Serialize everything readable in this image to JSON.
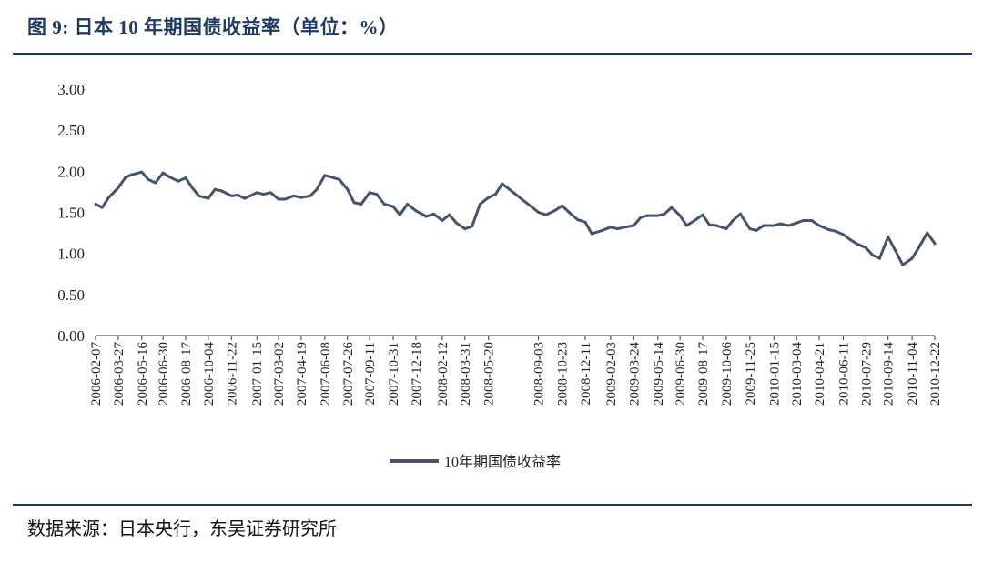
{
  "figure": {
    "title": "图 9:  日本 10 年期国债收益率（单位：%）",
    "source": "数据来源：日本央行，东吴证券研究所"
  },
  "chart_data": {
    "type": "line",
    "title": "图 9:  日本 10 年期国债收益率（单位：%）",
    "xlabel": "",
    "ylabel": "",
    "ylim": [
      0,
      3
    ],
    "y_ticks": [
      "0.00",
      "0.50",
      "1.00",
      "1.50",
      "2.00",
      "2.50",
      "3.00"
    ],
    "x_ticks": [
      "2006-02-07",
      "2006-03-27",
      "2006-05-16",
      "2006-06-30",
      "2006-08-17",
      "2006-10-04",
      "2006-11-22",
      "2007-01-15",
      "2007-03-02",
      "2007-04-19",
      "2007-06-08",
      "2007-07-26",
      "2007-09-11",
      "2007-10-31",
      "2007-12-18",
      "2008-02-12",
      "2008-03-31",
      "2008-05-20",
      "2008-09-03",
      "2008-10-23",
      "2008-12-11",
      "2009-02-03",
      "2009-03-24",
      "2009-05-14",
      "2009-06-30",
      "2009-08-17",
      "2009-10-06",
      "2009-11-25",
      "2010-01-15",
      "2010-03-04",
      "2010-04-21",
      "2010-06-11",
      "2010-07-29",
      "2010-09-14",
      "2010-11-04",
      "2010-12-22"
    ],
    "legend": {
      "position": "bottom"
    },
    "grid": false,
    "color": "#44546a",
    "series": [
      {
        "name": "10年期国债收益率",
        "x": [
          "2006-02-07",
          "2006-02-21",
          "2006-03-07",
          "2006-03-27",
          "2006-04-12",
          "2006-04-26",
          "2006-05-16",
          "2006-05-30",
          "2006-06-14",
          "2006-06-30",
          "2006-07-14",
          "2006-08-01",
          "2006-08-17",
          "2006-08-31",
          "2006-09-14",
          "2006-10-04",
          "2006-10-18",
          "2006-11-02",
          "2006-11-22",
          "2006-12-06",
          "2006-12-20",
          "2007-01-15",
          "2007-01-29",
          "2007-02-13",
          "2007-03-02",
          "2007-03-16",
          "2007-04-03",
          "2007-04-19",
          "2007-05-08",
          "2007-05-22",
          "2007-06-08",
          "2007-06-22",
          "2007-07-09",
          "2007-07-26",
          "2007-08-09",
          "2007-08-24",
          "2007-09-11",
          "2007-09-26",
          "2007-10-12",
          "2007-10-31",
          "2007-11-14",
          "2007-11-30",
          "2007-12-18",
          "2008-01-09",
          "2008-01-25",
          "2008-02-12",
          "2008-02-27",
          "2008-03-13",
          "2008-03-31",
          "2008-04-15",
          "2008-05-02",
          "2008-05-20",
          "2008-06-04",
          "2008-06-18",
          "2008-09-03",
          "2008-09-19",
          "2008-10-07",
          "2008-10-23",
          "2008-11-07",
          "2008-11-25",
          "2008-12-11",
          "2008-12-25",
          "2009-01-16",
          "2009-02-03",
          "2009-02-18",
          "2009-03-05",
          "2009-03-24",
          "2009-04-08",
          "2009-04-22",
          "2009-05-14",
          "2009-05-28",
          "2009-06-12",
          "2009-06-30",
          "2009-07-14",
          "2009-07-31",
          "2009-08-17",
          "2009-08-31",
          "2009-09-15",
          "2009-10-06",
          "2009-10-20",
          "2009-11-05",
          "2009-11-25",
          "2009-12-09",
          "2009-12-24",
          "2010-01-15",
          "2010-01-29",
          "2010-02-15",
          "2010-03-04",
          "2010-03-18",
          "2010-04-05",
          "2010-04-21",
          "2010-05-11",
          "2010-05-26",
          "2010-06-11",
          "2010-06-25",
          "2010-07-12",
          "2010-07-29",
          "2010-08-12",
          "2010-08-27",
          "2010-09-14",
          "2010-09-29",
          "2010-10-15",
          "2010-11-04",
          "2010-11-18",
          "2010-12-06",
          "2010-12-22"
        ],
        "values": [
          1.6,
          1.56,
          1.68,
          1.8,
          1.93,
          1.96,
          1.99,
          1.9,
          1.86,
          1.98,
          1.93,
          1.88,
          1.92,
          1.8,
          1.7,
          1.67,
          1.78,
          1.76,
          1.7,
          1.71,
          1.67,
          1.74,
          1.72,
          1.74,
          1.66,
          1.66,
          1.7,
          1.68,
          1.7,
          1.78,
          1.95,
          1.93,
          1.9,
          1.78,
          1.62,
          1.6,
          1.74,
          1.72,
          1.6,
          1.57,
          1.47,
          1.6,
          1.52,
          1.45,
          1.48,
          1.4,
          1.47,
          1.37,
          1.3,
          1.33,
          1.6,
          1.68,
          1.72,
          1.85,
          1.5,
          1.47,
          1.52,
          1.58,
          1.5,
          1.41,
          1.38,
          1.24,
          1.28,
          1.32,
          1.3,
          1.32,
          1.34,
          1.44,
          1.46,
          1.46,
          1.48,
          1.56,
          1.46,
          1.34,
          1.4,
          1.47,
          1.35,
          1.34,
          1.3,
          1.4,
          1.48,
          1.3,
          1.28,
          1.34,
          1.34,
          1.36,
          1.34,
          1.37,
          1.4,
          1.4,
          1.34,
          1.29,
          1.27,
          1.23,
          1.17,
          1.11,
          1.07,
          0.98,
          0.94,
          1.2,
          1.04,
          0.86,
          0.94,
          1.07,
          1.25,
          1.12
        ]
      }
    ]
  }
}
